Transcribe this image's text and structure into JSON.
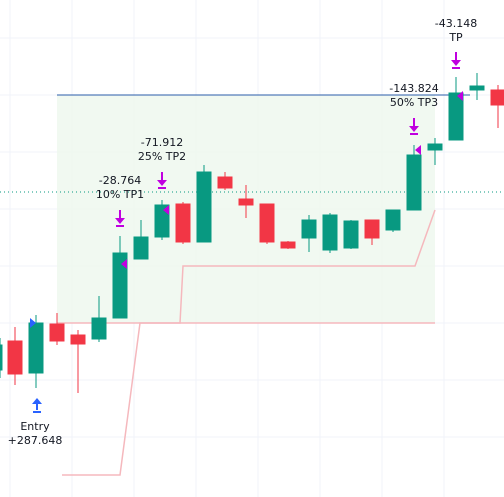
{
  "entry": {
    "label": "Entry",
    "value": "+287.648"
  },
  "exits": [
    {
      "value": "-28.764",
      "label": "10% TP1"
    },
    {
      "value": "-71.912",
      "label": "25% TP2"
    },
    {
      "value": "-143.824",
      "label": "50% TP3"
    },
    {
      "value": "-43.148",
      "label": "TP"
    }
  ]
}
